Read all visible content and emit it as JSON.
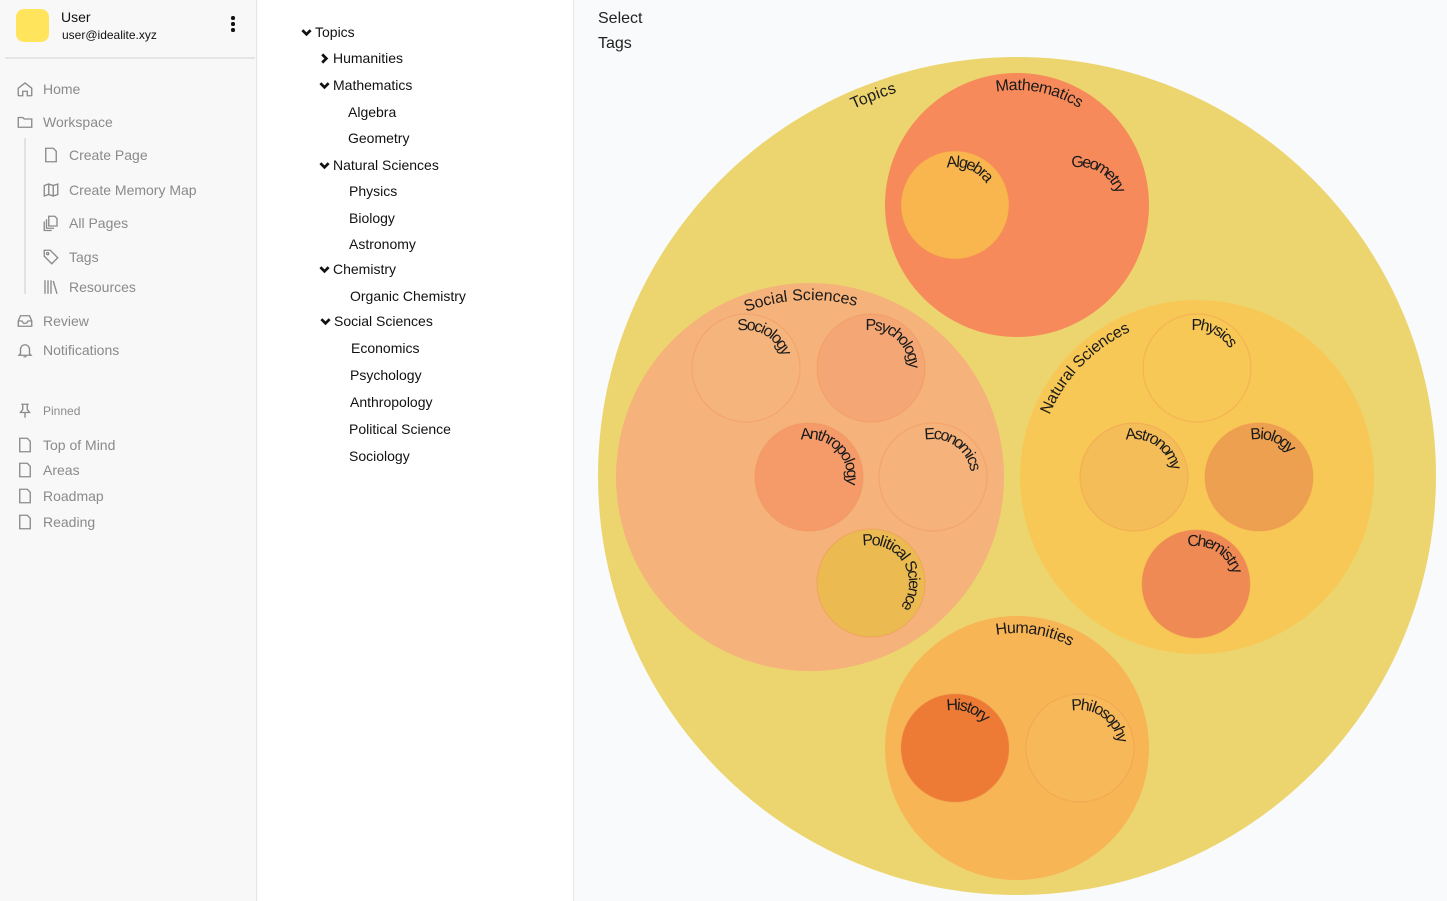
{
  "user": {
    "name": "User",
    "email": "user@idealite.xyz"
  },
  "sidebar": {
    "items": [
      {
        "label": "Home",
        "icon": "home-icon"
      },
      {
        "label": "Workspace",
        "icon": "folder-icon"
      },
      {
        "label": "Create Page",
        "icon": "file-icon"
      },
      {
        "label": "Create Memory Map",
        "icon": "map-icon"
      },
      {
        "label": "All Pages",
        "icon": "copy-icon"
      },
      {
        "label": "Tags",
        "icon": "tag-icon"
      },
      {
        "label": "Resources",
        "icon": "library-icon"
      },
      {
        "label": "Review",
        "icon": "inbox-icon"
      },
      {
        "label": "Notifications",
        "icon": "bell-icon"
      }
    ],
    "pinned_label": "Pinned",
    "pinned": [
      "Top of Mind",
      "Areas",
      "Roadmap",
      "Reading"
    ]
  },
  "tree": [
    {
      "label": "Topics",
      "chevron": "down"
    },
    {
      "label": "Humanities",
      "chevron": "right"
    },
    {
      "label": "Mathematics",
      "chevron": "down"
    },
    {
      "label": "Algebra"
    },
    {
      "label": "Geometry"
    },
    {
      "label": "Natural Sciences",
      "chevron": "down"
    },
    {
      "label": "Physics"
    },
    {
      "label": "Biology"
    },
    {
      "label": "Astronomy"
    },
    {
      "label": "Chemistry",
      "chevron": "down"
    },
    {
      "label": "Organic Chemistry"
    },
    {
      "label": "Social Sciences",
      "chevron": "down"
    },
    {
      "label": "Economics"
    },
    {
      "label": "Psychology"
    },
    {
      "label": "Anthropology"
    },
    {
      "label": "Political Science"
    },
    {
      "label": "Sociology"
    }
  ],
  "main": {
    "title_line1": "Select",
    "title_line2": "Tags"
  },
  "bubbles": [
    {
      "label": "Topics",
      "color": "#ecd56e"
    },
    {
      "label": "Mathematics",
      "color": "#f78a5a"
    },
    {
      "label": "Algebra",
      "color": "#f9b64f"
    },
    {
      "label": "Geometry",
      "color": "#f78a5a"
    },
    {
      "label": "Social Sciences",
      "color": "#f5b27a"
    },
    {
      "label": "Sociology",
      "color": "#f5b47c"
    },
    {
      "label": "Psychology",
      "color": "#f4a774"
    },
    {
      "label": "Anthropology",
      "color": "#f59b6a"
    },
    {
      "label": "Economics",
      "color": "#f5b27a"
    },
    {
      "label": "Political Science",
      "color": "#ebbb52"
    },
    {
      "label": "Natural Sciences",
      "color": "#f7c856"
    },
    {
      "label": "Physics",
      "color": "#f7c856"
    },
    {
      "label": "Astronomy",
      "color": "#f4bd58"
    },
    {
      "label": "Biology",
      "color": "#eda050"
    },
    {
      "label": "Chemistry",
      "color": "#ef8a55"
    },
    {
      "label": "Humanities",
      "color": "#f7b555"
    },
    {
      "label": "History",
      "color": "#ed7a35"
    },
    {
      "label": "Philosophy",
      "color": "#f7b85a"
    }
  ]
}
